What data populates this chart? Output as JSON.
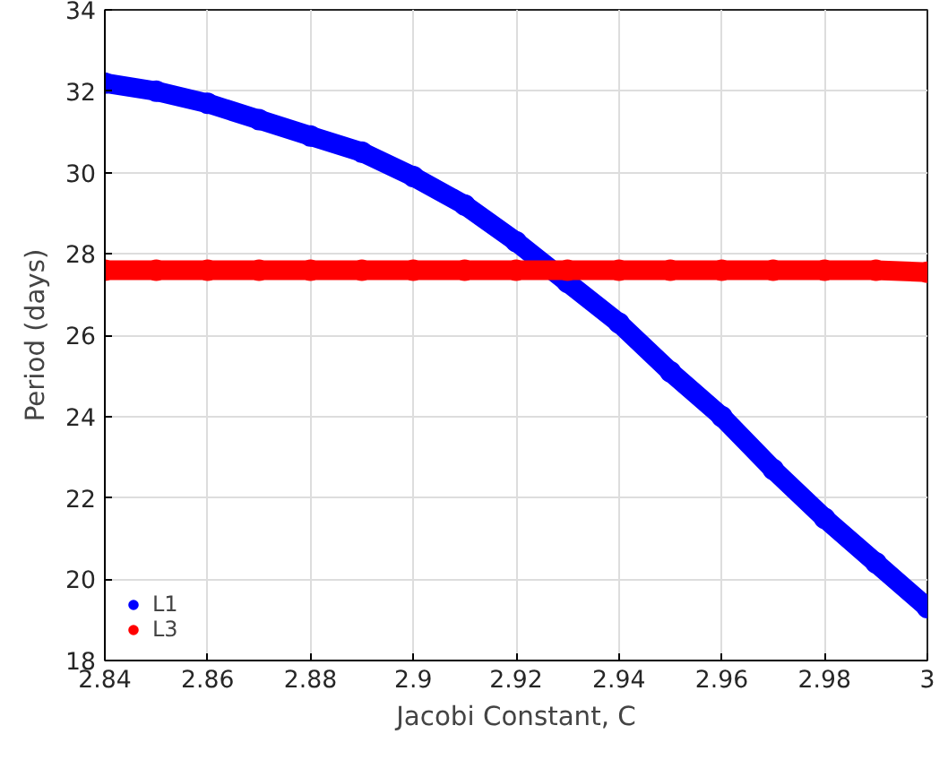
{
  "chart_data": {
    "type": "line",
    "xlabel": "Jacobi Constant, C",
    "ylabel": "Period (days)",
    "x": [
      2.84,
      2.85,
      2.86,
      2.87,
      2.88,
      2.89,
      2.9,
      2.91,
      2.92,
      2.93,
      2.94,
      2.95,
      2.96,
      2.97,
      2.98,
      2.99,
      3.0
    ],
    "series": [
      {
        "name": "L1",
        "color": "#0000ff",
        "values": [
          32.2,
          32.0,
          31.7,
          31.3,
          30.9,
          30.5,
          29.9,
          29.2,
          28.3,
          27.3,
          26.3,
          25.1,
          24.0,
          22.7,
          21.5,
          20.4,
          19.3
        ]
      },
      {
        "name": "L3",
        "color": "#ff0000",
        "values": [
          27.6,
          27.6,
          27.6,
          27.6,
          27.6,
          27.6,
          27.6,
          27.6,
          27.6,
          27.6,
          27.6,
          27.6,
          27.6,
          27.6,
          27.6,
          27.6,
          27.55
        ]
      }
    ],
    "xlim": [
      2.84,
      3.0
    ],
    "ylim": [
      18,
      34
    ],
    "xticks": [
      2.84,
      2.86,
      2.88,
      2.9,
      2.92,
      2.94,
      2.96,
      2.98,
      3
    ],
    "yticks": [
      18,
      20,
      22,
      24,
      26,
      28,
      30,
      32,
      34
    ],
    "grid": true,
    "legend": "bottom left",
    "marker": "circle",
    "line_style": "solid"
  }
}
